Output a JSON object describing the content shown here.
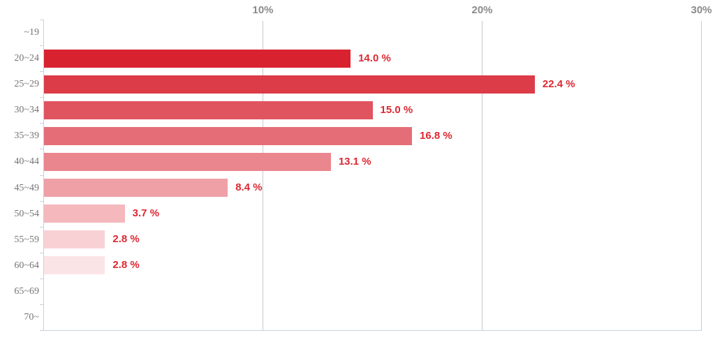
{
  "chart_data": {
    "type": "bar",
    "orientation": "horizontal",
    "title": "",
    "xlabel": "",
    "ylabel": "",
    "legend": "none",
    "grid": "vertical-only",
    "categories": [
      "~19",
      "20~24",
      "25~29",
      "30~34",
      "35~39",
      "40~44",
      "45~49",
      "50~54",
      "55~59",
      "60~64",
      "65~69",
      "70~"
    ],
    "values": [
      null,
      14.0,
      22.4,
      15.0,
      16.8,
      13.1,
      8.4,
      3.7,
      2.8,
      2.8,
      null,
      null
    ],
    "value_labels": [
      null,
      "14.0 %",
      "22.4 %",
      "15.0 %",
      "16.8 %",
      "13.1 %",
      "8.4 %",
      "3.7 %",
      "2.8 %",
      "2.8 %",
      null,
      null
    ],
    "bar_colors": [
      null,
      "#D9222F",
      "#DC3B48",
      "#E0545F",
      "#E56D77",
      "#EA868E",
      "#EF9FA6",
      "#F4B8BD",
      "#F8D1D5",
      "#FBE4E6",
      null,
      null
    ],
    "x_axis": {
      "max": 30,
      "min": 0,
      "ticks": [
        {
          "label": "10%",
          "value": 10
        },
        {
          "label": "20%",
          "value": 20
        },
        {
          "label": "30%",
          "value": 30
        }
      ]
    },
    "colors": {
      "value_label": "#DC2832",
      "x_tick_label": "#8A8A8A",
      "category_label": "#757575",
      "gridline": "#C9C9C9",
      "axis": "#C5D2E0",
      "background": "#FFFFFF"
    }
  }
}
